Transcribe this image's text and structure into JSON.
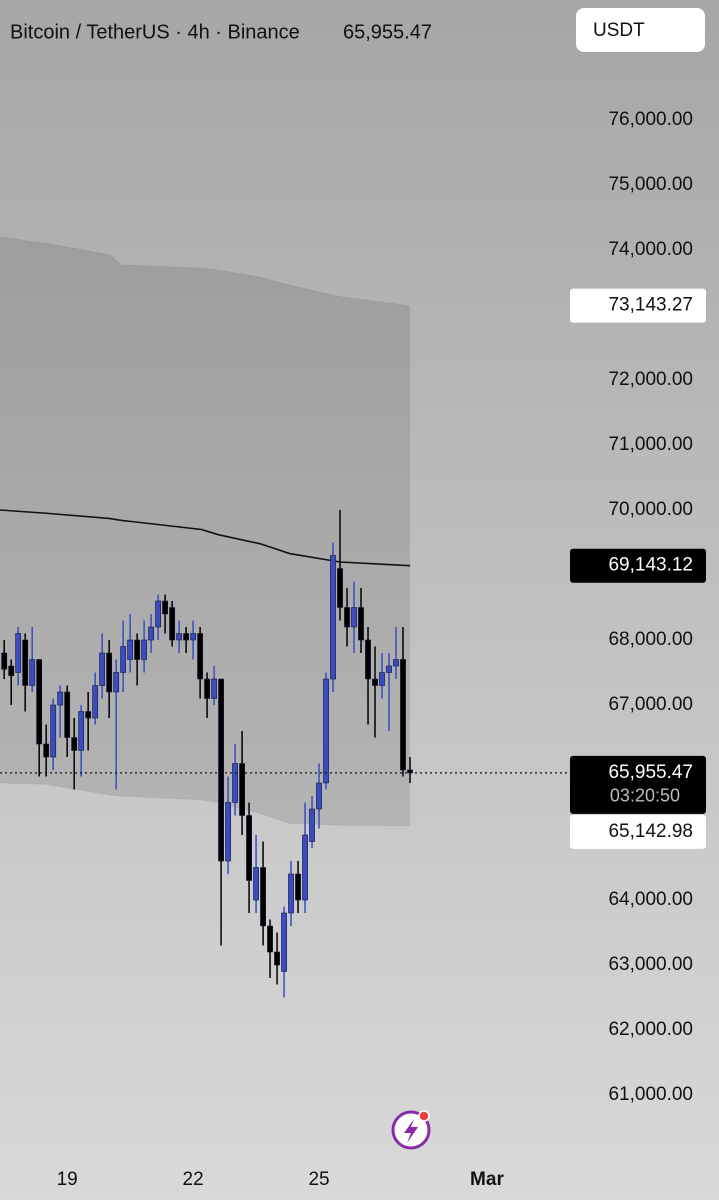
{
  "header": {
    "symbol": "Bitcoin / TetherUS · 4h · Binance",
    "last_price": "65,955.47"
  },
  "currency_button": "USDT",
  "chart_data": {
    "type": "candlestick",
    "xlim": [
      17.4,
      30.74
    ],
    "xticks": [
      19,
      22,
      25,
      {
        "value": 29,
        "label": "Mar"
      }
    ],
    "ylim": [
      60200,
      77000
    ],
    "yticks": [
      {
        "value": 61000,
        "label": "61,000.00"
      },
      {
        "value": 62000,
        "label": "62,000.00"
      },
      {
        "value": 63000,
        "label": "63,000.00"
      },
      {
        "value": 64000,
        "label": "64,000.00"
      },
      {
        "value": 67000,
        "label": "67,000.00"
      },
      {
        "value": 68000,
        "label": "68,000.00"
      },
      {
        "value": 70000,
        "label": "70,000.00"
      },
      {
        "value": 71000,
        "label": "71,000.00"
      },
      {
        "value": 72000,
        "label": "72,000.00"
      },
      {
        "value": 74000,
        "label": "74,000.00"
      },
      {
        "value": 75000,
        "label": "75,000.00"
      },
      {
        "value": 76000,
        "label": "76,000.00"
      }
    ],
    "grid": false,
    "up_color": "#3a4cc0",
    "down_color": "#000000",
    "candles": {
      "x": [
        17.5,
        17.667,
        17.833,
        18,
        18.167,
        18.333,
        18.5,
        18.667,
        18.833,
        19,
        19.167,
        19.333,
        19.5,
        19.667,
        19.833,
        20,
        20.167,
        20.333,
        20.5,
        20.667,
        20.833,
        21,
        21.167,
        21.333,
        21.5,
        21.667,
        21.833,
        22,
        22.167,
        22.333,
        22.5,
        22.667,
        22.833,
        23,
        23.167,
        23.333,
        23.5,
        23.667,
        23.833,
        24,
        24.167,
        24.333,
        24.5,
        24.667,
        24.833,
        25,
        25.167,
        25.333,
        25.5,
        25.667,
        25.833,
        26,
        26.167,
        26.333,
        26.5,
        26.667,
        26.833,
        27,
        27.167
      ],
      "open": [
        67800,
        67600,
        67500,
        68000,
        67300,
        67700,
        66400,
        66200,
        67000,
        67200,
        66500,
        66300,
        66900,
        66800,
        67300,
        67800,
        67200,
        67500,
        67700,
        68000,
        67700,
        68000,
        68200,
        68600,
        68500,
        68000,
        68100,
        68000,
        68100,
        67400,
        67100,
        67400,
        64600,
        65500,
        66100,
        65300,
        64000,
        64500,
        63600,
        63200,
        62900,
        63800,
        64400,
        64000,
        64900,
        65400,
        65800,
        67400,
        69100,
        68500,
        68200,
        68500,
        68000,
        67400,
        67300,
        67500,
        67600,
        67700,
        66000
      ],
      "high": [
        68000,
        67700,
        68200,
        68100,
        68200,
        67700,
        66700,
        67100,
        67300,
        67300,
        66800,
        67000,
        67200,
        67500,
        68100,
        68000,
        67700,
        68300,
        68400,
        68100,
        68300,
        68400,
        68700,
        68700,
        68600,
        68300,
        68200,
        68300,
        68200,
        67500,
        67600,
        67400,
        65900,
        66400,
        66600,
        65500,
        65000,
        64900,
        63700,
        63500,
        63900,
        64600,
        64600,
        65500,
        65600,
        66100,
        67500,
        69500,
        70000,
        68800,
        68900,
        68800,
        68200,
        67900,
        67800,
        67800,
        68200,
        68200,
        66200
      ],
      "low": [
        67400,
        67000,
        67300,
        66900,
        67200,
        65900,
        65900,
        66000,
        66500,
        66200,
        65700,
        65900,
        66300,
        66700,
        67100,
        66800,
        65700,
        67200,
        67500,
        67300,
        67500,
        67800,
        68000,
        68100,
        67900,
        67800,
        67800,
        67700,
        67100,
        66800,
        67000,
        63300,
        64400,
        65300,
        65000,
        63800,
        63800,
        63300,
        62800,
        62700,
        62500,
        63600,
        63800,
        63800,
        64800,
        65100,
        65700,
        67200,
        68300,
        67900,
        67800,
        67800,
        66700,
        66500,
        67100,
        66600,
        67400,
        65900,
        65800
      ],
      "close": [
        67550,
        67450,
        68100,
        67300,
        67700,
        66400,
        66200,
        67000,
        67200,
        66500,
        66300,
        66900,
        66800,
        67300,
        67800,
        67200,
        67500,
        67900,
        68000,
        67700,
        68000,
        68200,
        68600,
        68400,
        68000,
        68100,
        68000,
        68100,
        67400,
        67100,
        67400,
        64600,
        65500,
        66100,
        65300,
        64300,
        64500,
        63600,
        63200,
        63000,
        63800,
        64400,
        64000,
        65000,
        65400,
        65800,
        67400,
        69300,
        68500,
        68200,
        68500,
        68000,
        67400,
        67300,
        67500,
        67600,
        67700,
        66000,
        65955.47
      ]
    },
    "bands": {
      "x": [
        17.4,
        18.5,
        20.0,
        20.3,
        22.2,
        22.6,
        23.6,
        24.3,
        25.5,
        27.17
      ],
      "upper": [
        74200,
        74100,
        73930,
        73770,
        73720,
        73690,
        73580,
        73460,
        73280,
        73143.27
      ],
      "basis": [
        70000,
        69950,
        69870,
        69840,
        69700,
        69620,
        69480,
        69330,
        69200,
        69143.12
      ],
      "lower": [
        65800,
        65780,
        65620,
        65600,
        65540,
        65500,
        65330,
        65180,
        65150,
        65142.98
      ]
    },
    "price_labels": [
      {
        "value": 73143.27,
        "label": "73,143.27",
        "bg": "#ffffff",
        "fg": "#111111"
      },
      {
        "value": 69143.12,
        "label": "69,143.12",
        "bg": "#000000",
        "fg": "#ffffff"
      },
      {
        "value": 65955.47,
        "label": "65,955.47",
        "bg": "#000000",
        "fg": "#ffffff",
        "countdown": "03:20:50"
      },
      {
        "value": 65142.98,
        "label": "65,142.98",
        "bg": "#ffffff",
        "fg": "#111111"
      }
    ]
  }
}
